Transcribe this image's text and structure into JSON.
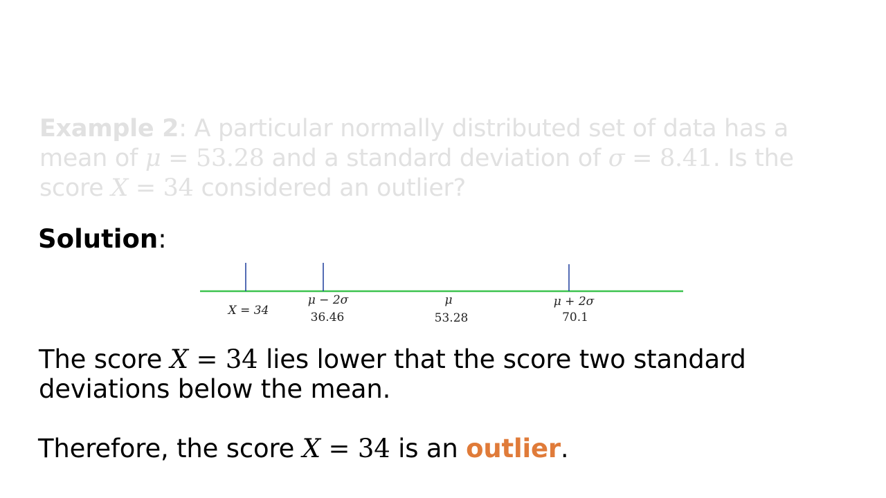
{
  "example": {
    "label": "Example 2",
    "text_1": ": A particular normally distributed set of data has a mean of ",
    "mean_symbol": "μ",
    "mean_eq": " = 53.28",
    "text_2": " and a standard deviation of ",
    "sd_symbol": "σ",
    "sd_eq": " = 8.41",
    "text_3": ". Is the score ",
    "x_symbol": "X",
    "x_eq": " = 34",
    "text_4": " considered an outlier?"
  },
  "solution": {
    "label": "Solution",
    "colon": ":"
  },
  "number_line": {
    "line_color": "#3cc24e",
    "tick_color": "#1b3a9b",
    "markers": [
      {
        "symbol": "X = 34",
        "value": ""
      },
      {
        "symbol": "μ − 2σ",
        "value": "36.46"
      },
      {
        "symbol": "μ",
        "value": "53.28"
      },
      {
        "symbol": "μ + 2σ",
        "value": "70.1"
      }
    ]
  },
  "paragraph_1": {
    "text_1": "The score ",
    "x_symbol": "X",
    "x_eq": " = 34",
    "text_2": " lies lower that the score two standard deviations below the mean."
  },
  "paragraph_2": {
    "text_1": "Therefore, the score ",
    "x_symbol": "X",
    "x_eq": " = 34",
    "text_2": " is an ",
    "highlight": "outlier",
    "text_3": "."
  },
  "colors": {
    "accent": "#e07b39",
    "faded_text": "#e1e1e1"
  }
}
